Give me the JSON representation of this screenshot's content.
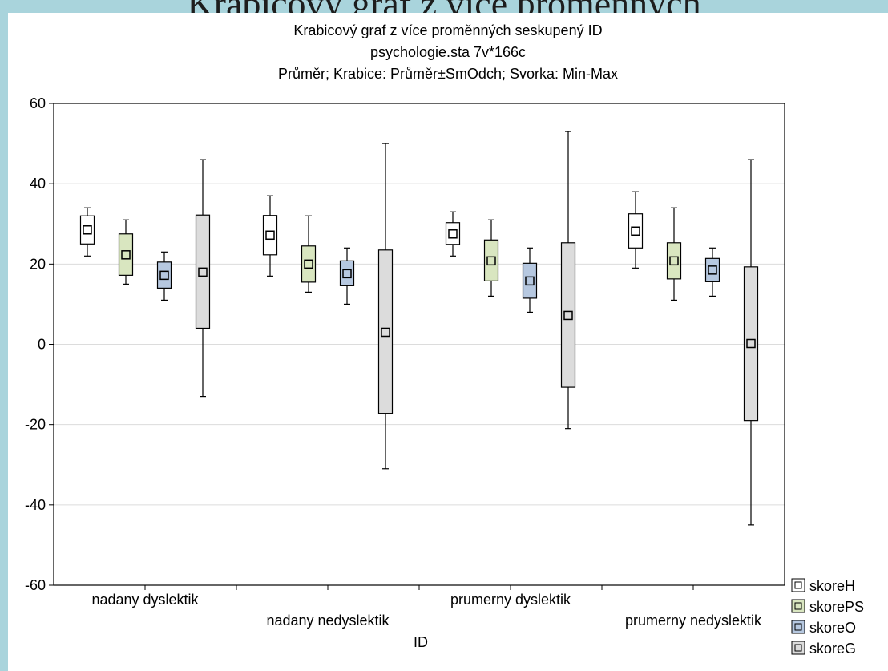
{
  "slide": {
    "title": "Krabicový graf z více proměnných"
  },
  "chart_data": {
    "type": "box",
    "title": "Krabicový graf z více proměnných seskupený ID",
    "subtitle": "psychologie.sta 7v*166c",
    "note": "Průměr; Krabice: Průměr±SmOdch; Svorka: Min-Max",
    "xlabel": "ID",
    "ylabel": "",
    "ylim": [
      -60,
      60
    ],
    "yticks": [
      -60,
      -40,
      -20,
      0,
      20,
      40,
      60
    ],
    "grid": true,
    "legend_position": "bottom-right",
    "categories": [
      "nadany dyslektik",
      "nadany nedyslektik",
      "prumerny dyslektik",
      "prumerny nedyslektik"
    ],
    "series": [
      {
        "name": "skoreH",
        "color": "#ffffff",
        "mean": [
          28.5,
          27.2,
          27.5,
          28.2
        ],
        "box_low": [
          25,
          22.3,
          24.9,
          24
        ],
        "box_high": [
          32,
          32.1,
          30.3,
          32.5
        ],
        "min": [
          22,
          17,
          22,
          19
        ],
        "max": [
          34,
          37,
          33,
          38
        ]
      },
      {
        "name": "skorePS",
        "color": "#d9e6c0",
        "mean": [
          22.3,
          20,
          20.8,
          20.8
        ],
        "box_low": [
          17.2,
          15.5,
          15.8,
          16.3
        ],
        "box_high": [
          27.5,
          24.5,
          26,
          25.3
        ],
        "min": [
          15,
          13,
          12,
          11
        ],
        "max": [
          31,
          32,
          31,
          34
        ]
      },
      {
        "name": "skoreO",
        "color": "#b6c8e0",
        "mean": [
          17.2,
          17.6,
          15.8,
          18.5
        ],
        "box_low": [
          14,
          14.6,
          11.5,
          15.6
        ],
        "box_high": [
          20.5,
          20.8,
          20.2,
          21.4
        ],
        "min": [
          11,
          10,
          8,
          12
        ],
        "max": [
          23,
          24,
          24,
          24
        ]
      },
      {
        "name": "skoreG",
        "color": "#dcdcdc",
        "mean": [
          18,
          3,
          7.2,
          0.2
        ],
        "box_low": [
          4,
          -17.2,
          -10.7,
          -19
        ],
        "box_high": [
          32.2,
          23.5,
          25.3,
          19.3
        ],
        "min": [
          -13,
          -31,
          -21,
          -45
        ],
        "max": [
          46,
          50,
          53,
          46
        ]
      }
    ]
  }
}
